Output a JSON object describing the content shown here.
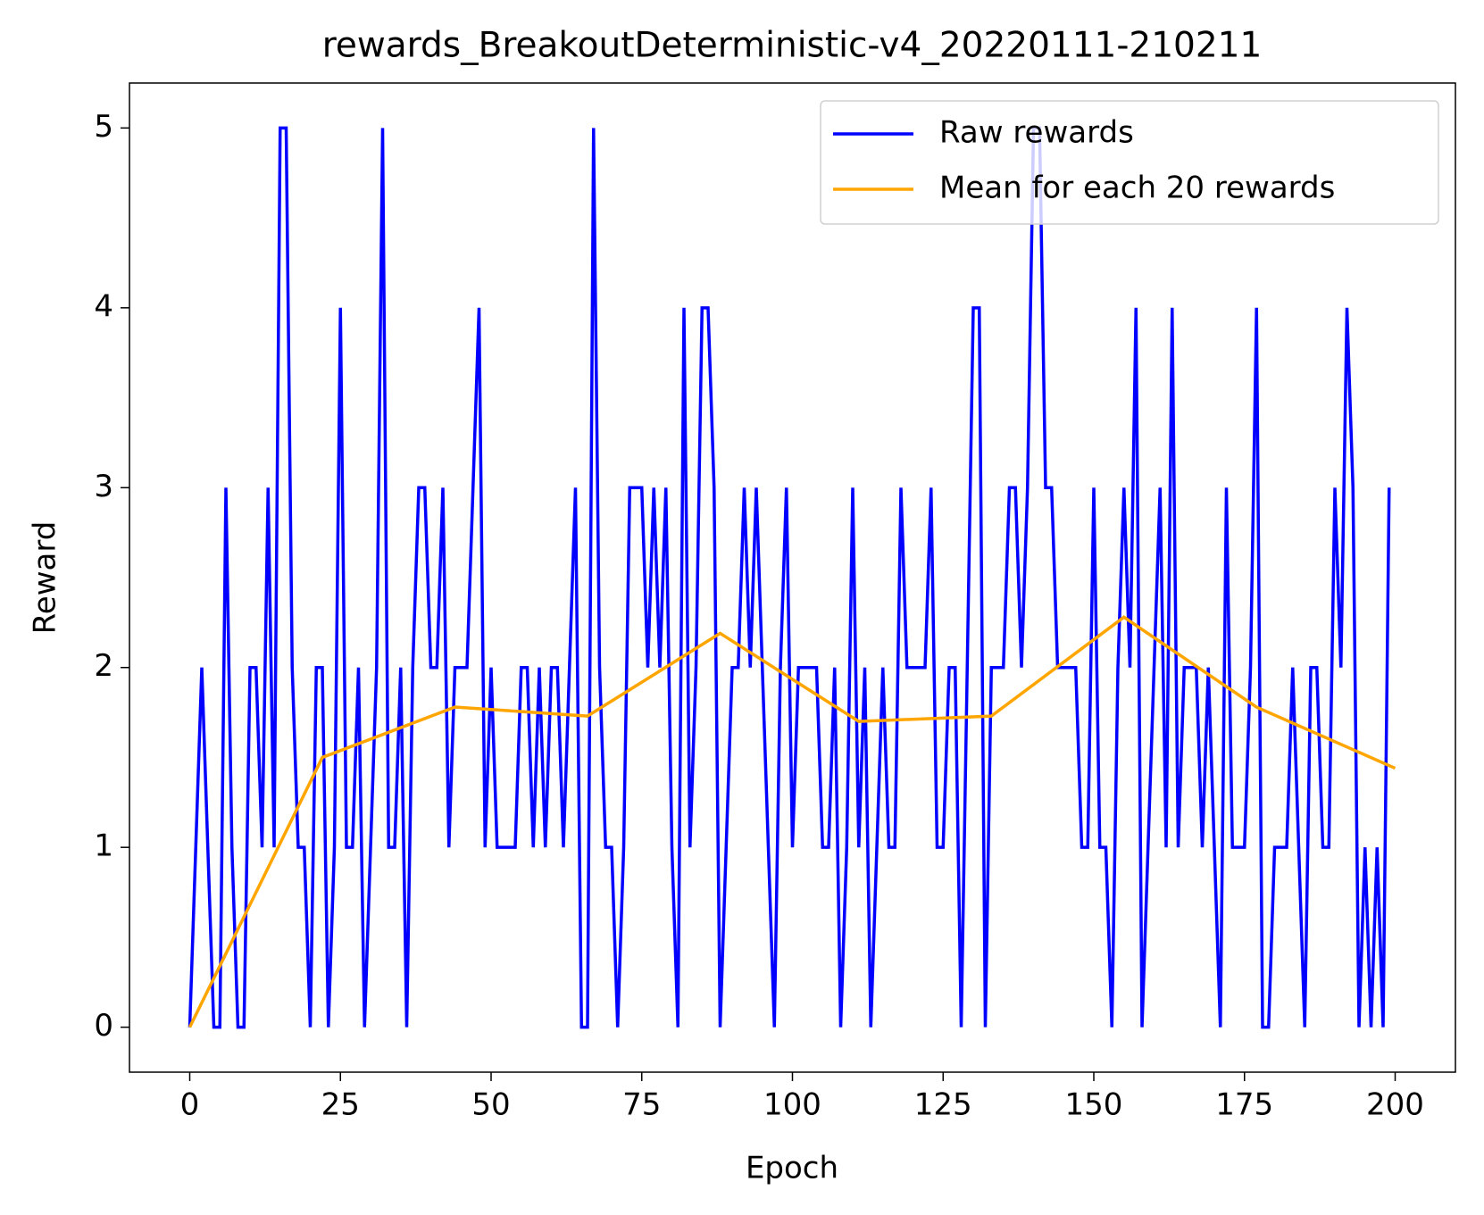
{
  "chart_data": {
    "type": "line",
    "title": "rewards_BreakoutDeterministic-v4_20220111-210211",
    "xlabel": "Epoch",
    "ylabel": "Reward",
    "xlim": [
      -10,
      210
    ],
    "xticks": [
      0,
      25,
      50,
      75,
      100,
      125,
      150,
      175,
      200
    ],
    "ylim": [
      -0.25,
      5.25
    ],
    "yticks": [
      0,
      1,
      2,
      3,
      4,
      5
    ],
    "legend": "upper right",
    "grid": false,
    "series": [
      {
        "name": "Raw rewards",
        "color": "#0000ff",
        "x": [
          0,
          1,
          2,
          3,
          4,
          5,
          6,
          7,
          8,
          9,
          10,
          11,
          12,
          13,
          14,
          15,
          16,
          17,
          18,
          19,
          20,
          21,
          22,
          23,
          24,
          25,
          26,
          27,
          28,
          29,
          30,
          31,
          32,
          33,
          34,
          35,
          36,
          37,
          38,
          39,
          40,
          41,
          42,
          43,
          44,
          45,
          46,
          47,
          48,
          49,
          50,
          51,
          52,
          53,
          54,
          55,
          56,
          57,
          58,
          59,
          60,
          61,
          62,
          63,
          64,
          65,
          66,
          67,
          68,
          69,
          70,
          71,
          72,
          73,
          74,
          75,
          76,
          77,
          78,
          79,
          80,
          81,
          82,
          83,
          84,
          85,
          86,
          87,
          88,
          89,
          90,
          91,
          92,
          93,
          94,
          95,
          96,
          97,
          98,
          99,
          100,
          101,
          102,
          103,
          104,
          105,
          106,
          107,
          108,
          109,
          110,
          111,
          112,
          113,
          114,
          115,
          116,
          117,
          118,
          119,
          120,
          121,
          122,
          123,
          124,
          125,
          126,
          127,
          128,
          129,
          130,
          131,
          132,
          133,
          134,
          135,
          136,
          137,
          138,
          139,
          140,
          141,
          142,
          143,
          144,
          145,
          146,
          147,
          148,
          149,
          150,
          151,
          152,
          153,
          154,
          155,
          156,
          157,
          158,
          159,
          160,
          161,
          162,
          163,
          164,
          165,
          166,
          167,
          168,
          169,
          170,
          171,
          172,
          173,
          174,
          175,
          176,
          177,
          178,
          179,
          180,
          181,
          182,
          183,
          184,
          185,
          186,
          187,
          188,
          189,
          190,
          191,
          192,
          193,
          194,
          195,
          196,
          197,
          198,
          199
        ],
        "values": [
          0,
          1,
          2,
          1,
          0,
          0,
          3,
          1,
          0,
          0,
          2,
          2,
          1,
          3,
          1,
          5,
          5,
          2,
          1,
          1,
          0,
          2,
          2,
          0,
          1,
          4,
          1,
          1,
          2,
          0,
          1,
          2,
          5,
          1,
          1,
          2,
          0,
          2,
          3,
          3,
          2,
          2,
          3,
          1,
          2,
          2,
          2,
          3,
          4,
          1,
          2,
          1,
          1,
          1,
          1,
          2,
          2,
          1,
          2,
          1,
          2,
          2,
          1,
          2,
          3,
          0,
          0,
          5,
          2,
          1,
          1,
          0,
          1,
          3,
          3,
          3,
          2,
          3,
          2,
          3,
          1,
          0,
          4,
          1,
          2,
          4,
          4,
          3,
          0,
          1,
          2,
          2,
          3,
          2,
          3,
          2,
          1,
          0,
          2,
          3,
          1,
          2,
          2,
          2,
          2,
          1,
          1,
          2,
          0,
          1,
          3,
          1,
          2,
          0,
          1,
          2,
          1,
          1,
          3,
          2,
          2,
          2,
          2,
          3,
          1,
          1,
          2,
          2,
          0,
          2,
          4,
          4,
          0,
          2,
          2,
          2,
          3,
          3,
          2,
          3,
          5,
          5,
          3,
          3,
          2,
          2,
          2,
          2,
          1,
          1,
          3,
          1,
          1,
          0,
          2,
          3,
          2,
          4,
          0,
          1,
          2,
          3,
          1,
          4,
          1,
          2,
          2,
          2,
          1,
          2,
          1,
          0,
          3,
          1,
          1,
          1,
          2,
          4,
          0,
          0,
          1,
          1,
          1,
          2,
          1,
          0,
          2,
          2,
          1,
          1,
          3,
          2,
          4,
          3,
          0,
          1,
          0,
          1,
          0,
          3
        ]
      },
      {
        "name": "Mean for each 20 rewards",
        "color": "#ffa500",
        "x": [
          0,
          22,
          44,
          66,
          88,
          111,
          133,
          155,
          177,
          200
        ],
        "values": [
          0,
          1.5,
          1.78,
          1.73,
          2.19,
          1.7,
          1.73,
          2.28,
          1.78,
          1.44
        ]
      }
    ]
  }
}
